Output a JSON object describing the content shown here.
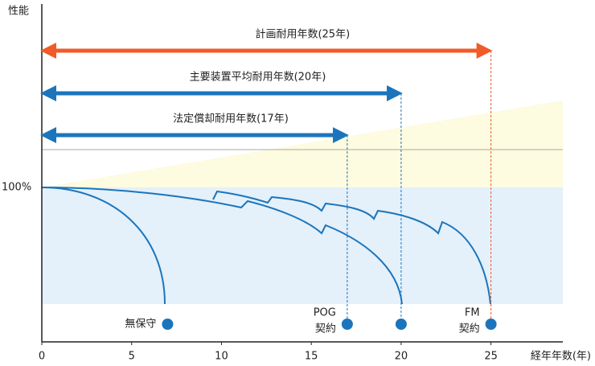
{
  "chart_data": {
    "type": "lifespan",
    "y_label": "性能",
    "y_reference_label": "100%",
    "x_label": "経年年数(年)",
    "xlim": [
      0,
      29
    ],
    "xticks": [
      0,
      5,
      10,
      15,
      20,
      25
    ],
    "spans": [
      {
        "label": "計画耐用年数(25年)",
        "years": 25,
        "color": "#f15a29"
      },
      {
        "label": "主要装置平均耐用年数(20年)",
        "years": 20,
        "color": "#1b75bc"
      },
      {
        "label": "法定償却耐用年数(17年)",
        "years": 17,
        "color": "#1b75bc"
      }
    ],
    "points": [
      {
        "label": [
          "無保守"
        ],
        "x": 7
      },
      {
        "label": [
          "POG",
          "契約"
        ],
        "x": 17
      },
      {
        "label": [
          "",
          ""
        ],
        "x": 20
      },
      {
        "label": [
          "FM",
          "契約"
        ],
        "x": 25
      }
    ],
    "point_color": "#1b75bc"
  }
}
